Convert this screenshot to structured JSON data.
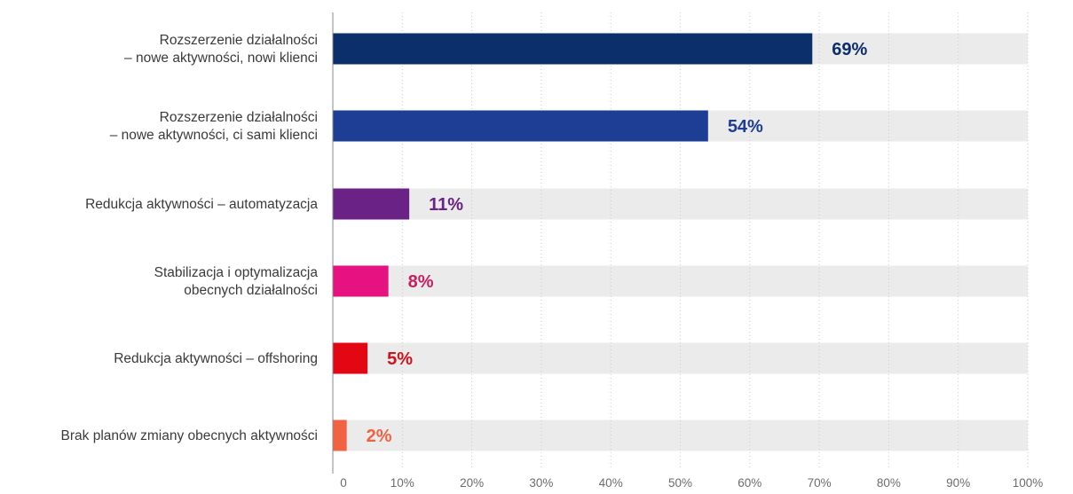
{
  "chart_data": {
    "type": "bar",
    "orientation": "horizontal",
    "categories": [
      [
        "Rozszerzenie działalności",
        "– nowe aktywności, nowi klienci"
      ],
      [
        "Rozszerzenie działalności",
        "– nowe aktywności, ci sami klienci"
      ],
      [
        "Redukcja aktywności – automatyzacja"
      ],
      [
        "Stabilizacja i optymalizacja",
        "obecnych działalności"
      ],
      [
        "Redukcja aktywności – offshoring"
      ],
      [
        "Brak planów zmiany obecnych aktywności"
      ]
    ],
    "values": [
      69,
      54,
      11,
      8,
      5,
      2
    ],
    "value_labels": [
      "69%",
      "54%",
      "11%",
      "8%",
      "5%",
      "2%"
    ],
    "colors": [
      "#0b2f6b",
      "#1e3e95",
      "#6a2286",
      "#e6127f",
      "#e30613",
      "#f06241"
    ],
    "label_colors": [
      "#0b2f6b",
      "#1e3e95",
      "#6a2286",
      "#c8205f",
      "#d0121c",
      "#f06241"
    ],
    "track_color": "#ebebeb",
    "x_ticks": [
      0,
      10,
      20,
      30,
      40,
      50,
      60,
      70,
      80,
      90,
      100
    ],
    "x_tick_labels": [
      "0",
      "10%",
      "20%",
      "30%",
      "40%",
      "50%",
      "60%",
      "70%",
      "80%",
      "90%",
      "100%"
    ],
    "xlim": [
      0,
      100
    ],
    "grid": true,
    "legend": "none",
    "title": "",
    "xlabel": "",
    "ylabel": ""
  }
}
